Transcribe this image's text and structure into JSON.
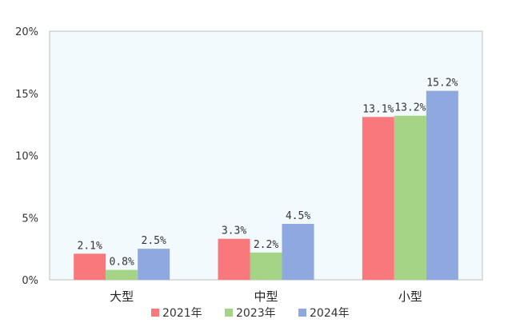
{
  "chart_data": {
    "type": "bar",
    "categories": [
      "大型",
      "中型",
      "小型"
    ],
    "series": [
      {
        "name": "2021年",
        "color": "#F8787C",
        "values": [
          2.1,
          3.3,
          13.1
        ],
        "labels": [
          "2.1%",
          "3.3%",
          "13.1%"
        ]
      },
      {
        "name": "2023年",
        "color": "#A6D486",
        "values": [
          0.8,
          2.2,
          13.2
        ],
        "labels": [
          "0.8%",
          "2.2%",
          "13.2%"
        ]
      },
      {
        "name": "2024年",
        "color": "#8FA8E0",
        "values": [
          2.5,
          4.5,
          15.2
        ],
        "labels": [
          "2.5%",
          "4.5%",
          "15.2%"
        ]
      }
    ],
    "ylim": [
      0,
      20
    ],
    "yticks": [
      0,
      5,
      10,
      15,
      20
    ],
    "ytick_labels": [
      "0%",
      "5%",
      "10%",
      "15%",
      "20%"
    ],
    "plot_background": "#F2FAFD",
    "grid": false,
    "legend_position": "bottom"
  }
}
